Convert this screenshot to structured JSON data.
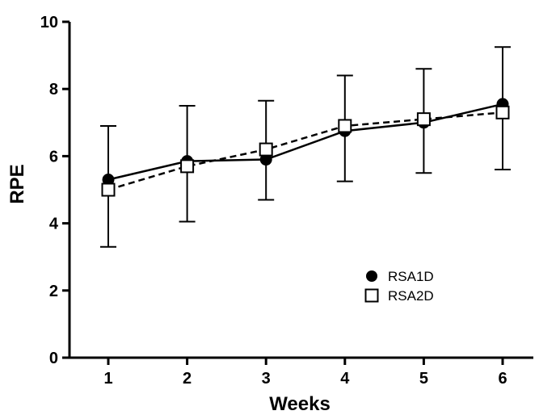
{
  "chart_data": {
    "type": "line",
    "title": "",
    "xlabel": "Weeks",
    "ylabel": "RPE",
    "x": [
      1,
      2,
      3,
      4,
      5,
      6
    ],
    "x_tick_labels": [
      "1",
      "2",
      "3",
      "4",
      "5",
      "6"
    ],
    "ylim": [
      0,
      10
    ],
    "y_ticks": [
      0,
      2,
      4,
      6,
      8,
      10
    ],
    "y_tick_labels": [
      "0",
      "2",
      "4",
      "6",
      "8",
      "10"
    ],
    "grid": false,
    "legend_position": "lower-right",
    "series": [
      {
        "name": "RSA1D",
        "marker": "filled-circle",
        "line_style": "solid",
        "values": [
          5.3,
          5.85,
          5.9,
          6.75,
          7.0,
          7.55
        ],
        "error_upper": [
          6.9,
          7.5,
          7.65,
          8.4,
          8.6,
          9.25
        ],
        "error_lower": [
          3.3,
          4.05,
          4.7,
          5.25,
          5.5,
          5.6
        ]
      },
      {
        "name": "RSA2D",
        "marker": "open-square",
        "line_style": "dashed",
        "values": [
          5.0,
          5.7,
          6.2,
          6.9,
          7.1,
          7.3
        ]
      }
    ],
    "colors": {
      "line": "#000000",
      "marker_fill_open": "#ffffff"
    }
  }
}
